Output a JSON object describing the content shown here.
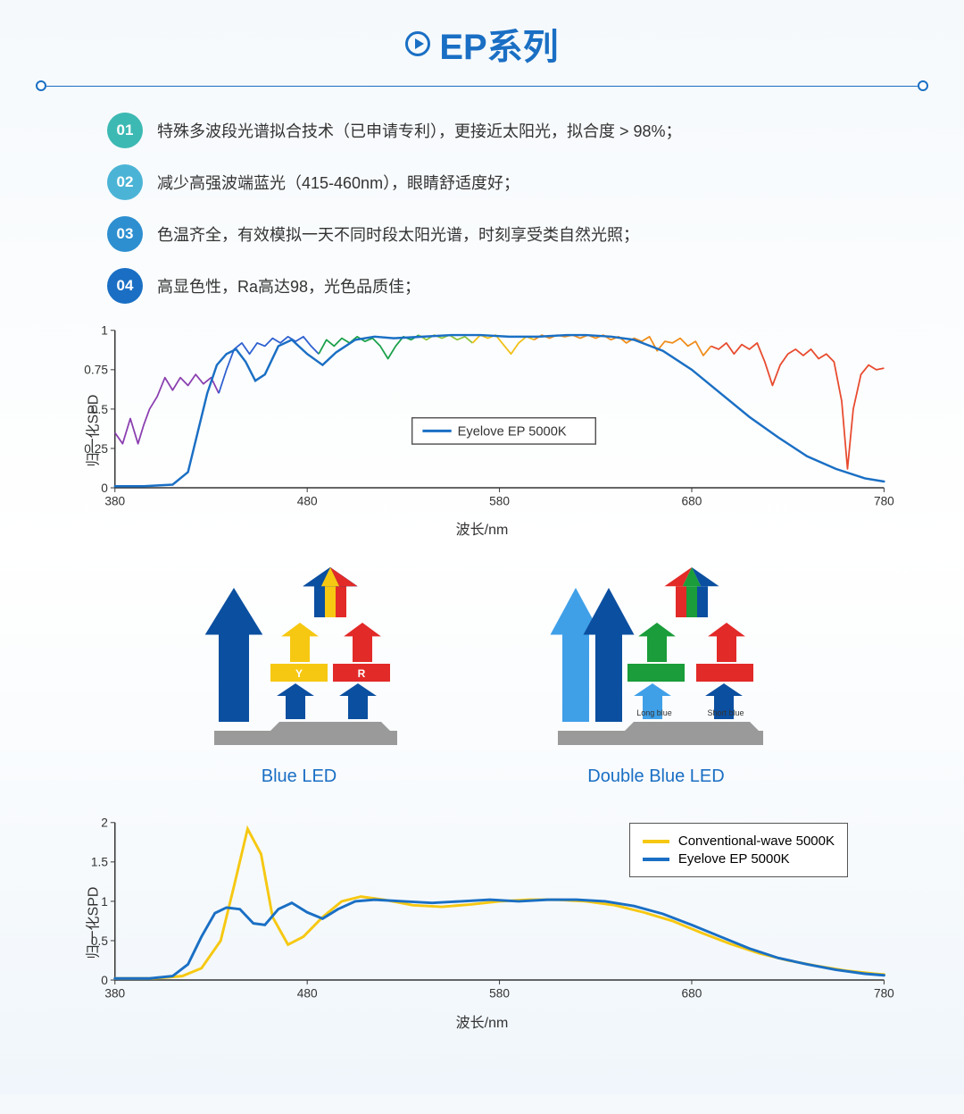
{
  "title": "EP系列",
  "features": [
    {
      "num": "01",
      "color": "#3db9b3",
      "text": "特殊多波段光谱拟合技术（已申请专利），更接近太阳光，拟合度 > 98%；"
    },
    {
      "num": "02",
      "color": "#4bb4d6",
      "text": "减少高强波端蓝光（415-460nm），眼睛舒适度好；"
    },
    {
      "num": "03",
      "color": "#2d8fd0",
      "text": "色温齐全，有效模拟一天不同时段太阳光谱，时刻享受类自然光照；"
    },
    {
      "num": "04",
      "color": "#1a6fc4",
      "text": "高显色性，Ra高达98，光色品质佳；"
    }
  ],
  "chart1": {
    "type": "line",
    "ylabel": "归一化SPD",
    "xlabel": "波长/nm",
    "xlim": [
      380,
      780
    ],
    "ylim": [
      0,
      1
    ],
    "xticks": [
      380,
      480,
      580,
      680,
      780
    ],
    "yticks": [
      0,
      0.25,
      0.5,
      0.75,
      1
    ],
    "legend": {
      "label": "Eyelove EP 5000K",
      "color": "#1a6fc4"
    },
    "background_color": "#ffffff",
    "axis_color": "#333333",
    "line_width": 2.5,
    "ep_color": "#1a6fc4",
    "ep_curve": [
      [
        380,
        0.01
      ],
      [
        395,
        0.01
      ],
      [
        410,
        0.02
      ],
      [
        418,
        0.1
      ],
      [
        423,
        0.35
      ],
      [
        428,
        0.6
      ],
      [
        433,
        0.78
      ],
      [
        438,
        0.85
      ],
      [
        443,
        0.88
      ],
      [
        448,
        0.8
      ],
      [
        453,
        0.68
      ],
      [
        458,
        0.72
      ],
      [
        465,
        0.9
      ],
      [
        472,
        0.94
      ],
      [
        480,
        0.85
      ],
      [
        488,
        0.78
      ],
      [
        495,
        0.86
      ],
      [
        505,
        0.94
      ],
      [
        515,
        0.96
      ],
      [
        525,
        0.95
      ],
      [
        540,
        0.96
      ],
      [
        555,
        0.97
      ],
      [
        570,
        0.97
      ],
      [
        585,
        0.96
      ],
      [
        600,
        0.96
      ],
      [
        615,
        0.97
      ],
      [
        625,
        0.97
      ],
      [
        638,
        0.96
      ],
      [
        650,
        0.94
      ],
      [
        665,
        0.87
      ],
      [
        680,
        0.75
      ],
      [
        695,
        0.6
      ],
      [
        710,
        0.45
      ],
      [
        725,
        0.32
      ],
      [
        740,
        0.2
      ],
      [
        755,
        0.12
      ],
      [
        770,
        0.06
      ],
      [
        780,
        0.04
      ]
    ],
    "sun_segments": [
      {
        "color": "#8a3fb0",
        "pts": [
          [
            380,
            0.35
          ],
          [
            384,
            0.28
          ],
          [
            388,
            0.44
          ],
          [
            392,
            0.28
          ],
          [
            395,
            0.4
          ],
          [
            398,
            0.5
          ],
          [
            402,
            0.58
          ],
          [
            406,
            0.7
          ],
          [
            410,
            0.62
          ],
          [
            414,
            0.7
          ],
          [
            418,
            0.65
          ],
          [
            422,
            0.72
          ],
          [
            426,
            0.66
          ],
          [
            430,
            0.7
          ],
          [
            434,
            0.6
          ]
        ]
      },
      {
        "color": "#2d5fd0",
        "pts": [
          [
            434,
            0.6
          ],
          [
            438,
            0.75
          ],
          [
            442,
            0.88
          ],
          [
            446,
            0.92
          ],
          [
            450,
            0.85
          ],
          [
            454,
            0.92
          ],
          [
            458,
            0.9
          ],
          [
            462,
            0.95
          ],
          [
            466,
            0.92
          ],
          [
            470,
            0.96
          ],
          [
            474,
            0.93
          ],
          [
            478,
            0.96
          ],
          [
            482,
            0.9
          ],
          [
            486,
            0.85
          ]
        ]
      },
      {
        "color": "#1aa04a",
        "pts": [
          [
            486,
            0.85
          ],
          [
            490,
            0.94
          ],
          [
            494,
            0.9
          ],
          [
            498,
            0.95
          ],
          [
            502,
            0.92
          ],
          [
            506,
            0.96
          ],
          [
            510,
            0.93
          ],
          [
            514,
            0.95
          ],
          [
            518,
            0.9
          ],
          [
            522,
            0.82
          ],
          [
            526,
            0.9
          ],
          [
            530,
            0.96
          ],
          [
            534,
            0.94
          ],
          [
            538,
            0.97
          ]
        ]
      },
      {
        "color": "#8fc43d",
        "pts": [
          [
            538,
            0.97
          ],
          [
            542,
            0.94
          ],
          [
            546,
            0.97
          ],
          [
            550,
            0.95
          ],
          [
            554,
            0.97
          ],
          [
            558,
            0.94
          ],
          [
            562,
            0.96
          ],
          [
            566,
            0.92
          ]
        ]
      },
      {
        "color": "#f2c014",
        "pts": [
          [
            566,
            0.92
          ],
          [
            570,
            0.97
          ],
          [
            574,
            0.95
          ],
          [
            578,
            0.97
          ],
          [
            582,
            0.91
          ],
          [
            586,
            0.85
          ],
          [
            590,
            0.92
          ],
          [
            594,
            0.96
          ],
          [
            598,
            0.94
          ]
        ]
      },
      {
        "color": "#f08c1a",
        "pts": [
          [
            598,
            0.94
          ],
          [
            602,
            0.97
          ],
          [
            606,
            0.95
          ],
          [
            610,
            0.97
          ],
          [
            614,
            0.96
          ],
          [
            618,
            0.97
          ],
          [
            622,
            0.95
          ],
          [
            626,
            0.97
          ],
          [
            630,
            0.95
          ],
          [
            634,
            0.97
          ],
          [
            638,
            0.94
          ],
          [
            642,
            0.96
          ],
          [
            646,
            0.92
          ],
          [
            650,
            0.95
          ],
          [
            654,
            0.93
          ],
          [
            658,
            0.96
          ],
          [
            662,
            0.87
          ],
          [
            666,
            0.93
          ],
          [
            670,
            0.92
          ],
          [
            674,
            0.95
          ],
          [
            678,
            0.9
          ],
          [
            682,
            0.93
          ],
          [
            686,
            0.84
          ],
          [
            690,
            0.9
          ]
        ]
      },
      {
        "color": "#e84a2e",
        "pts": [
          [
            690,
            0.9
          ],
          [
            694,
            0.88
          ],
          [
            698,
            0.92
          ],
          [
            702,
            0.85
          ],
          [
            706,
            0.91
          ],
          [
            710,
            0.88
          ],
          [
            714,
            0.92
          ],
          [
            718,
            0.8
          ],
          [
            722,
            0.65
          ],
          [
            726,
            0.78
          ],
          [
            730,
            0.85
          ],
          [
            734,
            0.88
          ],
          [
            738,
            0.84
          ],
          [
            742,
            0.88
          ],
          [
            746,
            0.82
          ],
          [
            750,
            0.85
          ],
          [
            754,
            0.8
          ],
          [
            758,
            0.55
          ],
          [
            761,
            0.12
          ],
          [
            764,
            0.5
          ],
          [
            768,
            0.72
          ],
          [
            772,
            0.78
          ],
          [
            776,
            0.75
          ],
          [
            780,
            0.76
          ]
        ]
      }
    ]
  },
  "diagrams": {
    "left": {
      "label": "Blue LED",
      "phosphor_labels": [
        "Y",
        "R"
      ]
    },
    "right": {
      "label": "Double Blue LED",
      "chip_labels": [
        "Long blue",
        "Short blue"
      ]
    },
    "colors": {
      "blue_dark": "#0b4fa0",
      "blue_light": "#3fa0e8",
      "yellow": "#f6c812",
      "red": "#e22a28",
      "green": "#1a9d3a",
      "gray": "#9a9a9a",
      "text": "#ffffff"
    }
  },
  "chart2": {
    "type": "line",
    "ylabel": "归一化SPD",
    "xlabel": "波长/nm",
    "xlim": [
      380,
      780
    ],
    "ylim": [
      0,
      2
    ],
    "xticks": [
      380,
      480,
      580,
      680,
      780
    ],
    "yticks": [
      0,
      0.5,
      1,
      1.5,
      2
    ],
    "axis_color": "#333333",
    "line_width": 3,
    "series": [
      {
        "label": "Conventional-wave 5000K",
        "color": "#f6c812",
        "pts": [
          [
            380,
            0.02
          ],
          [
            400,
            0.02
          ],
          [
            415,
            0.05
          ],
          [
            425,
            0.15
          ],
          [
            435,
            0.5
          ],
          [
            442,
            1.2
          ],
          [
            449,
            1.92
          ],
          [
            456,
            1.6
          ],
          [
            462,
            0.8
          ],
          [
            470,
            0.45
          ],
          [
            478,
            0.55
          ],
          [
            488,
            0.8
          ],
          [
            498,
            1.0
          ],
          [
            508,
            1.06
          ],
          [
            520,
            1.02
          ],
          [
            535,
            0.95
          ],
          [
            550,
            0.93
          ],
          [
            565,
            0.96
          ],
          [
            580,
            1.0
          ],
          [
            595,
            1.02
          ],
          [
            610,
            1.02
          ],
          [
            625,
            1.0
          ],
          [
            640,
            0.95
          ],
          [
            655,
            0.86
          ],
          [
            670,
            0.75
          ],
          [
            685,
            0.6
          ],
          [
            700,
            0.46
          ],
          [
            715,
            0.34
          ],
          [
            730,
            0.25
          ],
          [
            745,
            0.18
          ],
          [
            760,
            0.12
          ],
          [
            775,
            0.08
          ],
          [
            780,
            0.07
          ]
        ]
      },
      {
        "label": "Eyelove EP 5000K",
        "color": "#1a6fc4",
        "pts": [
          [
            380,
            0.02
          ],
          [
            398,
            0.02
          ],
          [
            410,
            0.05
          ],
          [
            418,
            0.2
          ],
          [
            425,
            0.55
          ],
          [
            432,
            0.85
          ],
          [
            438,
            0.92
          ],
          [
            445,
            0.9
          ],
          [
            452,
            0.72
          ],
          [
            458,
            0.7
          ],
          [
            465,
            0.9
          ],
          [
            472,
            0.98
          ],
          [
            480,
            0.86
          ],
          [
            488,
            0.78
          ],
          [
            496,
            0.9
          ],
          [
            505,
            1.0
          ],
          [
            515,
            1.02
          ],
          [
            530,
            1.0
          ],
          [
            545,
            0.98
          ],
          [
            560,
            1.0
          ],
          [
            575,
            1.02
          ],
          [
            590,
            1.0
          ],
          [
            605,
            1.02
          ],
          [
            620,
            1.02
          ],
          [
            635,
            1.0
          ],
          [
            650,
            0.94
          ],
          [
            665,
            0.84
          ],
          [
            680,
            0.7
          ],
          [
            695,
            0.55
          ],
          [
            710,
            0.4
          ],
          [
            725,
            0.28
          ],
          [
            740,
            0.2
          ],
          [
            755,
            0.13
          ],
          [
            770,
            0.08
          ],
          [
            780,
            0.06
          ]
        ]
      }
    ]
  }
}
